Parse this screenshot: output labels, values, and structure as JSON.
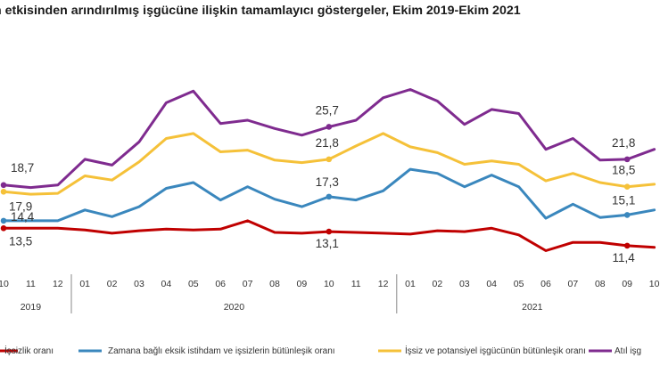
{
  "chart_data": {
    "type": "line",
    "title": "n etkisinden arındırılmış işgücüne ilişkin tamamlayıcı göstergeler, Ekim 2019-Ekim 2021",
    "categories": [
      "10",
      "11",
      "12",
      "01",
      "02",
      "03",
      "04",
      "05",
      "06",
      "07",
      "08",
      "09",
      "10",
      "11",
      "12",
      "01",
      "02",
      "03",
      "04",
      "05",
      "06",
      "07",
      "08",
      "09",
      "10"
    ],
    "year_groups": [
      {
        "label": "2019",
        "start": 0,
        "end": 2
      },
      {
        "label": "2020",
        "start": 3,
        "end": 14
      },
      {
        "label": "2021",
        "start": 15,
        "end": 24
      }
    ],
    "series": [
      {
        "name": "İşsizlik oranı",
        "color": "#c00000",
        "values": [
          13.5,
          13.5,
          13.5,
          13.3,
          12.9,
          13.2,
          13.4,
          13.3,
          13.4,
          14.4,
          13.0,
          12.9,
          13.1,
          13.0,
          12.9,
          12.8,
          13.2,
          13.1,
          13.5,
          12.7,
          10.8,
          11.8,
          11.8,
          11.4,
          11.2
        ],
        "labeled": [
          [
            0,
            "13,5"
          ],
          [
            12,
            "13,1"
          ],
          [
            23,
            "11,4"
          ]
        ]
      },
      {
        "name": "Zamana bağlı eksik istihdam ve işsizlerin bütünleşik oranı",
        "color": "#3a87bd",
        "values": [
          14.4,
          14.4,
          14.4,
          15.7,
          14.9,
          16.1,
          18.3,
          19.0,
          16.9,
          18.5,
          17.0,
          16.1,
          17.3,
          16.9,
          18.0,
          20.6,
          20.1,
          18.5,
          19.9,
          18.5,
          14.7,
          16.4,
          14.8,
          15.1,
          15.7
        ],
        "labeled": [
          [
            0,
            "14,4"
          ],
          [
            12,
            "17,3"
          ],
          [
            23,
            "15,1"
          ]
        ]
      },
      {
        "name": "İşsiz ve potansiyel işgücünün bütünleşik oranı",
        "color": "#f5c139",
        "values": [
          17.9,
          17.6,
          17.7,
          19.8,
          19.3,
          21.5,
          24.3,
          24.9,
          22.7,
          22.9,
          21.7,
          21.4,
          21.8,
          23.4,
          24.9,
          23.3,
          22.6,
          21.2,
          21.6,
          21.2,
          19.2,
          20.1,
          19.0,
          18.5,
          18.8
        ],
        "labeled": [
          [
            0,
            "17,9"
          ],
          [
            12,
            "21,8"
          ],
          [
            23,
            "18,5"
          ]
        ]
      },
      {
        "name": "Atıl işgücü oranı",
        "color": "#7f2b8f",
        "values": [
          18.7,
          18.4,
          18.7,
          21.8,
          21.1,
          23.9,
          28.6,
          30.0,
          26.1,
          26.5,
          25.5,
          24.7,
          25.7,
          26.5,
          29.2,
          30.2,
          28.8,
          26.0,
          27.8,
          27.3,
          23.0,
          24.3,
          21.7,
          21.8,
          23.0
        ],
        "labeled": [
          [
            0,
            "18,7"
          ],
          [
            12,
            "25,7"
          ],
          [
            23,
            "21,8"
          ]
        ]
      }
    ],
    "legend_labels": [
      "İşsizlik oranı",
      "Zamana bağlı eksik istihdam ve işsizlerin bütünleşik oranı",
      "İşsiz ve potansiyel işgücünün bütünleşik oranı",
      "Atıl işg"
    ],
    "legend_position": "bottom",
    "grid": false,
    "xlabel": "",
    "ylabel": ""
  }
}
